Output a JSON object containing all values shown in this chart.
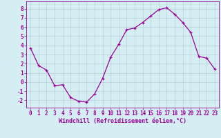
{
  "x": [
    0,
    1,
    2,
    3,
    4,
    5,
    6,
    7,
    8,
    9,
    10,
    11,
    12,
    13,
    14,
    15,
    16,
    17,
    18,
    19,
    20,
    21,
    22,
    23
  ],
  "y": [
    3.7,
    1.8,
    1.3,
    -0.4,
    -0.3,
    -1.7,
    -2.1,
    -2.2,
    -1.3,
    0.4,
    2.7,
    4.1,
    5.7,
    5.9,
    6.5,
    7.2,
    7.9,
    8.1,
    7.4,
    6.5,
    5.4,
    2.8,
    2.6,
    1.4
  ],
  "line_color": "#990099",
  "marker": "+",
  "marker_size": 3,
  "bg_color": "#d4eef4",
  "grid_color": "#b8d0d8",
  "xlabel": "Windchill (Refroidissement éolien,°C)",
  "xlabel_color": "#990099",
  "tick_color": "#990099",
  "xlim": [
    -0.5,
    23.5
  ],
  "ylim": [
    -2.8,
    8.8
  ],
  "yticks": [
    -2,
    -1,
    0,
    1,
    2,
    3,
    4,
    5,
    6,
    7,
    8
  ],
  "xticks": [
    0,
    1,
    2,
    3,
    4,
    5,
    6,
    7,
    8,
    9,
    10,
    11,
    12,
    13,
    14,
    15,
    16,
    17,
    18,
    19,
    20,
    21,
    22,
    23
  ],
  "font_family": "monospace",
  "tick_fontsize": 5.5,
  "xlabel_fontsize": 6.0,
  "linewidth": 0.9,
  "markeredgewidth": 0.9
}
